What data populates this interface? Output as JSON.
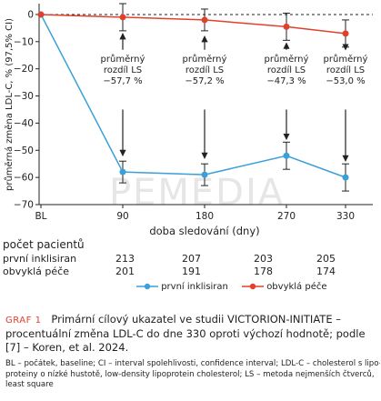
{
  "chart_data": {
    "type": "line",
    "ylabel": "průměrná změna LDL-C, % (97,5% CI)",
    "xlabel": "doba sledování (dny)",
    "categories": [
      "BL",
      "90",
      "180",
      "270",
      "330"
    ],
    "yticks": [
      "0",
      "-10",
      "-20",
      "-30",
      "-40",
      "-50",
      "-60",
      "-70"
    ],
    "ylim": [
      -70,
      4
    ],
    "series": [
      {
        "name": "první inklisiran",
        "color": "#3b9fd8",
        "values": [
          0,
          -58,
          -59,
          -52,
          -60
        ],
        "err": [
          null,
          4,
          4,
          5,
          5
        ]
      },
      {
        "name": "obvyklá péče",
        "color": "#e0412b",
        "values": [
          0,
          -1,
          -2,
          -4.5,
          -7
        ],
        "err": [
          null,
          5,
          4,
          5,
          5
        ]
      }
    ],
    "annotations": [
      {
        "x": "90",
        "lines": [
          "průměrný",
          "rozdíl LS",
          "−57,7 %"
        ]
      },
      {
        "x": "180",
        "lines": [
          "průměrný",
          "rozdíl LS",
          "−57,2 %"
        ]
      },
      {
        "x": "270",
        "lines": [
          "průměrný",
          "rozdíl LS",
          "−47,3 %"
        ]
      },
      {
        "x": "330",
        "lines": [
          "průměrný",
          "rozdíl LS",
          "−53,0 %"
        ]
      }
    ],
    "grid": false,
    "legend": "bottom-center"
  },
  "watermark": "PEMEDIA",
  "patients": {
    "title": "počet pacientů",
    "rows": [
      {
        "label": "první inklisiran",
        "values": [
          "213",
          "207",
          "203",
          "205"
        ]
      },
      {
        "label": "obvyklá péče",
        "values": [
          "201",
          "191",
          "178",
          "174"
        ]
      }
    ]
  },
  "caption": {
    "label": "GRAF 1",
    "text": "Primární cílový ukazatel ve studii VICTORION-INITIATE – procentuální změna LDL-C do dne 330 oproti výchozí hodnotě; podle [7] – Koren, et al. 2024."
  },
  "notes": [
    "BL – počátek, baseline; CI – interval spolehlivosti, confidence interval; LDL-C – cholesterol s lipo-",
    "proteiny o nízké hustotě, low-density lipoprotein cholesterol; LS – metoda nejmenších čtverců,",
    "least square"
  ]
}
